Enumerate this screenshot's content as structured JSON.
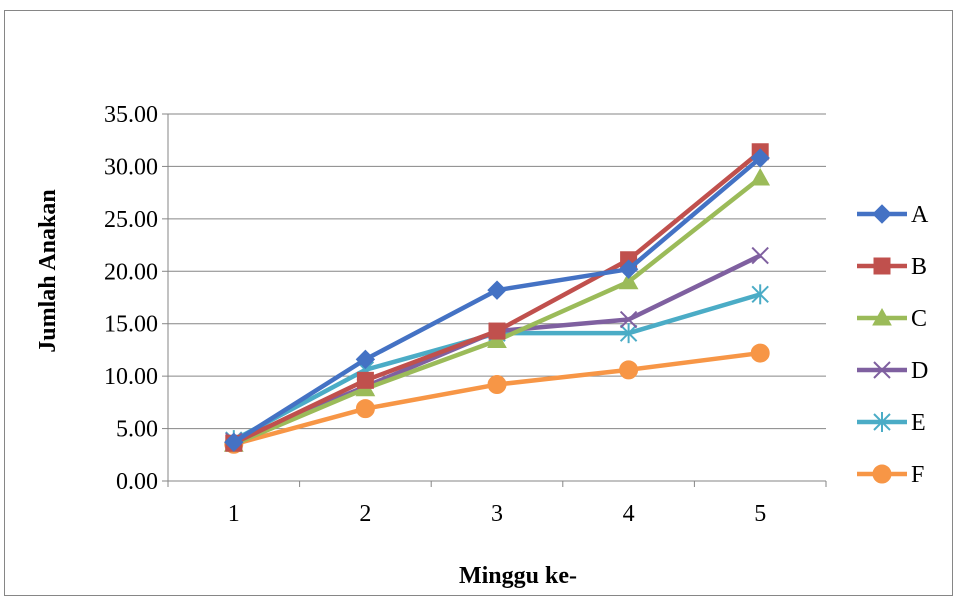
{
  "chart_data": {
    "type": "line",
    "xlabel": "Minggu ke-",
    "ylabel": "Jumlah Anakan",
    "categories": [
      "1",
      "2",
      "3",
      "4",
      "5"
    ],
    "ylim": [
      0,
      35
    ],
    "yticks": [
      "0.00",
      "5.00",
      "10.00",
      "15.00",
      "20.00",
      "25.00",
      "30.00",
      "35.00"
    ],
    "grid": true,
    "legend": "right",
    "series": [
      {
        "name": "A",
        "color": "#4472C4",
        "marker": "diamond",
        "values": [
          3.7,
          11.6,
          18.2,
          20.2,
          30.8
        ]
      },
      {
        "name": "B",
        "color": "#C0504D",
        "marker": "square",
        "values": [
          3.6,
          9.6,
          14.3,
          21.1,
          31.4
        ]
      },
      {
        "name": "C",
        "color": "#9BBB59",
        "marker": "triangle",
        "values": [
          3.5,
          8.8,
          13.4,
          19.0,
          28.9
        ]
      },
      {
        "name": "D",
        "color": "#7F60A0",
        "marker": "x",
        "values": [
          3.8,
          9.0,
          14.3,
          15.4,
          21.5
        ]
      },
      {
        "name": "E",
        "color": "#4BACC6",
        "marker": "star",
        "values": [
          3.9,
          10.6,
          14.1,
          14.1,
          17.8
        ]
      },
      {
        "name": "F",
        "color": "#F79646",
        "marker": "circle",
        "values": [
          3.5,
          6.9,
          9.2,
          10.6,
          12.2
        ]
      }
    ]
  }
}
